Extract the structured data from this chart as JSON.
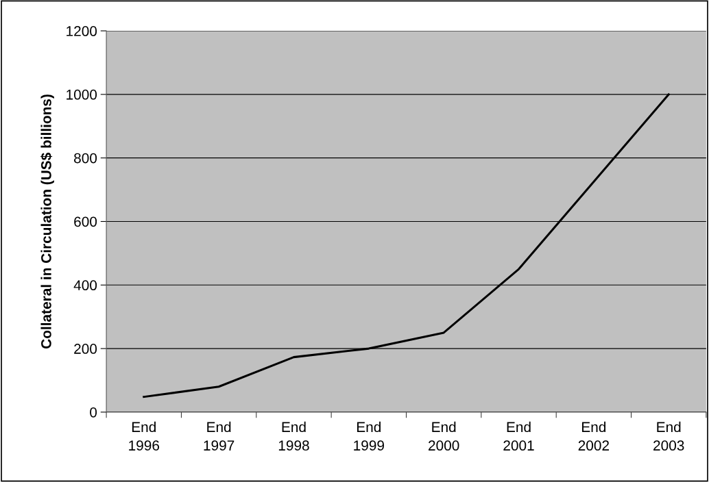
{
  "chart_data": {
    "type": "line",
    "ylabel": "Collateral in Circulation (US$ billions)",
    "categories": [
      "End\n1996",
      "End\n1997",
      "End\n1998",
      "End\n1999",
      "End\n2000",
      "End\n2001",
      "End\n2002",
      "End\n2003"
    ],
    "series": [
      {
        "color": "#000000",
        "values": [
          48,
          80,
          173,
          200,
          250,
          450,
          725,
          1000
        ]
      }
    ],
    "ylim": [
      0,
      1200
    ],
    "yticks": [
      0,
      200,
      400,
      600,
      800,
      1000,
      1200
    ],
    "grid": "y",
    "marker": "none",
    "line_style": "solid"
  }
}
